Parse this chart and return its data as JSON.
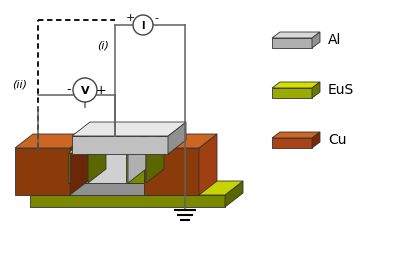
{
  "background_color": "#ffffff",
  "wire_color": "#606060",
  "Cu_top": "#cc6622",
  "Cu_front": "#8b3a0a",
  "Cu_side": "#6b2808",
  "Cu_dark_top": "#a04010",
  "EuS_top": "#c8d400",
  "EuS_front": "#7a8800",
  "EuS_side": "#5a6600",
  "EuS_bright": "#d4e000",
  "Al_top": "#c0c0c0",
  "Al_front": "#909090",
  "Al_side": "#707070",
  "Al_white": "#e8e8e8",
  "Al_whitefront": "#c8c8c8",
  "tunnel_top": "#f0f0f0",
  "tunnel_front": "#d0d0d0",
  "tunnel_side": "#b0b0b0",
  "label_ii": "(ii)",
  "label_i": "(i)",
  "voltmeter_label": "V",
  "ammeter_label": "I"
}
